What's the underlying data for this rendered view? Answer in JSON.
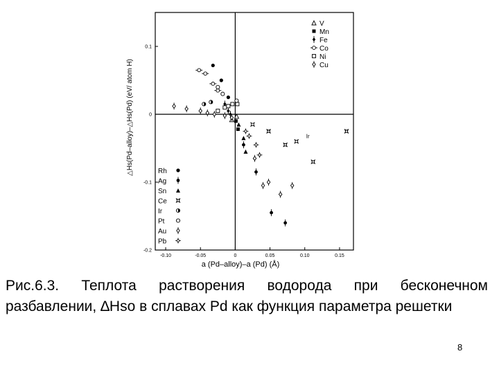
{
  "caption": "Рис.6.3. Теплота растворения водорода при бесконечном разбавлении, ∆Hso в сплавах Pd как функция параметра решетки",
  "page_number": "8",
  "chart_data": {
    "type": "scatter",
    "xlabel": "a (Pd–alloy)–a (Pd)  (Å)",
    "ylabel": "△Hs(Pd–alloy)–△Hs(Pd) (eV/ atom H)",
    "xlim": [
      -0.115,
      0.17
    ],
    "ylim": [
      -0.2,
      0.15
    ],
    "x_ticks": [
      -0.1,
      -0.05,
      0,
      0.05,
      0.1,
      0.15
    ],
    "x_tick_labels": [
      "-0.10",
      "-0.05",
      "0",
      "0.05",
      "0.10",
      "0.15"
    ],
    "y_ticks": [
      0.1,
      0,
      -0.1,
      -0.2
    ],
    "y_tick_labels": [
      "0.1",
      "0",
      "-0.1",
      "-0.2"
    ],
    "reference_lines": {
      "x": 0,
      "y": 0
    },
    "legend_top_right": [
      "V",
      "Mn",
      "Fe",
      "Co",
      "Ni",
      "Cu"
    ],
    "legend_bottom_left": [
      "Rh",
      "Ag",
      "Sn",
      "Ce",
      "Ir",
      "Pt",
      "Au",
      "Pb"
    ],
    "annotations": [
      {
        "text": "Ir",
        "x": 0.102,
        "y": -0.035
      }
    ],
    "series": [
      {
        "name": "V",
        "marker": "triangle-open",
        "points": [
          [
            -0.005,
            -0.008
          ],
          [
            0.002,
            -0.003
          ]
        ]
      },
      {
        "name": "Mn",
        "marker": "square-filled",
        "points": [
          [
            0.001,
            -0.01
          ],
          [
            0.004,
            -0.022
          ]
        ]
      },
      {
        "name": "Fe",
        "marker": "diamond-bar",
        "points": [
          [
            -0.015,
            0.015
          ],
          [
            -0.01,
            0.005
          ],
          [
            -0.007,
            0.0
          ]
        ]
      },
      {
        "name": "Co",
        "marker": "circle-bar",
        "points": [
          [
            -0.052,
            0.065
          ],
          [
            -0.043,
            0.06
          ],
          [
            -0.032,
            0.045
          ],
          [
            -0.025,
            0.035
          ]
        ]
      },
      {
        "name": "Ni",
        "marker": "square-open",
        "points": [
          [
            -0.025,
            0.005
          ],
          [
            -0.015,
            0.01
          ],
          [
            -0.01,
            0.012
          ],
          [
            -0.004,
            0.015
          ],
          [
            0.003,
            0.015
          ]
        ]
      },
      {
        "name": "Cu",
        "marker": "diamond-open",
        "points": [
          [
            -0.088,
            0.012
          ],
          [
            -0.07,
            0.008
          ],
          [
            -0.05,
            0.005
          ],
          [
            -0.04,
            0.002
          ],
          [
            -0.03,
            0.0
          ],
          [
            -0.015,
            -0.002
          ],
          [
            -0.005,
            -0.005
          ]
        ]
      },
      {
        "name": "Rh",
        "marker": "circle-filled",
        "points": [
          [
            -0.032,
            0.072
          ],
          [
            -0.02,
            0.05
          ],
          [
            -0.01,
            0.025
          ]
        ]
      },
      {
        "name": "Ag",
        "marker": "circle-bar-filled",
        "points": [
          [
            0.012,
            -0.045
          ],
          [
            0.03,
            -0.085
          ],
          [
            0.052,
            -0.145
          ],
          [
            0.072,
            -0.16
          ]
        ]
      },
      {
        "name": "Sn",
        "marker": "triangle-filled",
        "points": [
          [
            0.005,
            -0.015
          ],
          [
            0.012,
            -0.035
          ],
          [
            0.015,
            -0.055
          ]
        ]
      },
      {
        "name": "Ce",
        "marker": "star",
        "points": [
          [
            0.025,
            -0.015
          ],
          [
            0.048,
            -0.025
          ],
          [
            0.072,
            -0.045
          ],
          [
            0.088,
            -0.04
          ],
          [
            0.112,
            -0.07
          ],
          [
            0.16,
            -0.025
          ]
        ]
      },
      {
        "name": "Ir",
        "marker": "circle-half",
        "points": [
          [
            -0.045,
            0.015
          ],
          [
            -0.035,
            0.018
          ]
        ]
      },
      {
        "name": "Pt",
        "marker": "circle-open",
        "points": [
          [
            -0.025,
            0.04
          ],
          [
            -0.018,
            0.03
          ],
          [
            0.002,
            0.02
          ]
        ]
      },
      {
        "name": "Au",
        "marker": "diamond-open",
        "points": [
          [
            0.028,
            -0.065
          ],
          [
            0.04,
            -0.105
          ],
          [
            0.048,
            -0.1
          ],
          [
            0.065,
            -0.118
          ],
          [
            0.082,
            -0.105
          ]
        ]
      },
      {
        "name": "Pb",
        "marker": "diamond-plus",
        "points": [
          [
            0.015,
            -0.025
          ],
          [
            0.02,
            -0.032
          ],
          [
            0.03,
            -0.045
          ],
          [
            0.035,
            -0.06
          ]
        ]
      }
    ]
  }
}
